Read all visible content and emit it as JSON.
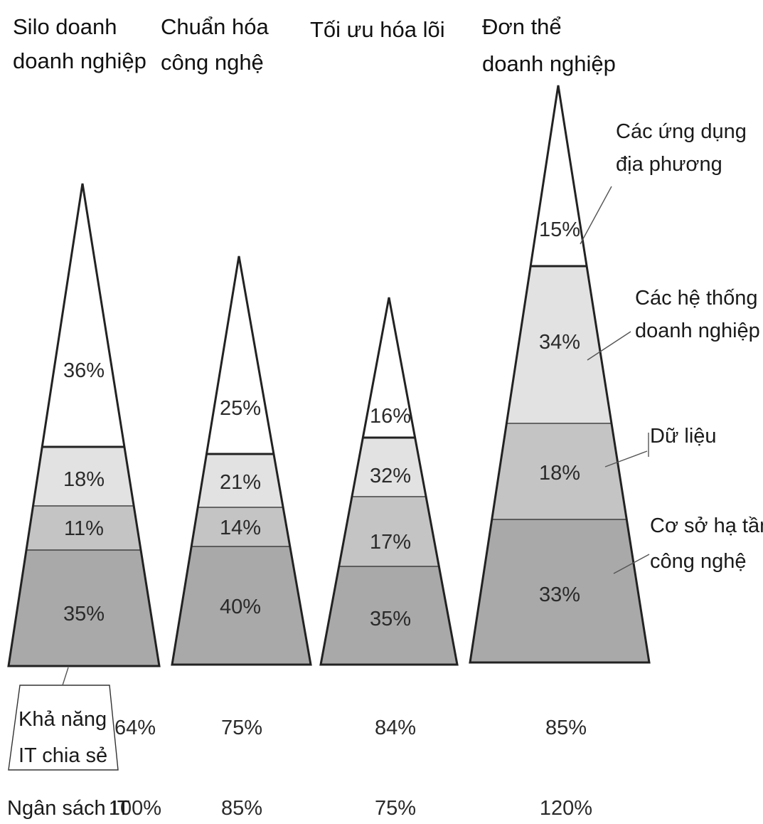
{
  "colors": {
    "local_applications": "#ffffff",
    "enterprise_systems": "#e2e2e2",
    "data": "#c4c4c4",
    "technology_infrastructure": "#a9a9a9",
    "outline": "#222222"
  },
  "stages": [
    {
      "title_lines": [
        "Silo doanh",
        "doanh nghiệp"
      ],
      "segments": [
        {
          "layer": "local_applications",
          "label": "36%",
          "value": 36
        },
        {
          "layer": "enterprise_systems",
          "label": "18%",
          "value": 18
        },
        {
          "layer": "data",
          "label": "11%",
          "value": 11
        },
        {
          "layer": "technology_infrastructure",
          "label": "35%",
          "value": 35
        }
      ],
      "shared_it": "64%",
      "it_budget": "100%"
    },
    {
      "title_lines": [
        "Chuẩn hóa",
        "công nghệ"
      ],
      "segments": [
        {
          "layer": "local_applications",
          "label": "25%",
          "value": 25
        },
        {
          "layer": "enterprise_systems",
          "label": "21%",
          "value": 21
        },
        {
          "layer": "data",
          "label": "14%",
          "value": 14
        },
        {
          "layer": "technology_infrastructure",
          "label": "40%",
          "value": 40
        }
      ],
      "shared_it": "75%",
      "it_budget": "85%"
    },
    {
      "title_lines": [
        "Tối ưu hóa lõi"
      ],
      "segments": [
        {
          "layer": "local_applications",
          "label": "16%",
          "value": 16
        },
        {
          "layer": "enterprise_systems",
          "label": "32%",
          "value": 32
        },
        {
          "layer": "data",
          "label": "17%",
          "value": 17
        },
        {
          "layer": "technology_infrastructure",
          "label": "35%",
          "value": 35
        }
      ],
      "shared_it": "84%",
      "it_budget": "75%"
    },
    {
      "title_lines": [
        "Đơn thể",
        "doanh nghiệp"
      ],
      "segments": [
        {
          "layer": "local_applications",
          "label": "15%",
          "value": 15
        },
        {
          "layer": "enterprise_systems",
          "label": "34%",
          "value": 34
        },
        {
          "layer": "data",
          "label": "18%",
          "value": 18
        },
        {
          "layer": "technology_infrastructure",
          "label": "33%",
          "value": 33
        }
      ],
      "shared_it": "85%",
      "it_budget": "120%"
    }
  ],
  "layer_labels": [
    {
      "layer": "local_applications",
      "lines": [
        "Các ứng dụng",
        "địa phương"
      ]
    },
    {
      "layer": "enterprise_systems",
      "lines": [
        "Các hệ thống",
        "doanh nghiệp"
      ]
    },
    {
      "layer": "data",
      "lines": [
        "Dữ liệu"
      ]
    },
    {
      "layer": "technology_infrastructure",
      "lines": [
        "Cơ sở hạ tầng",
        "công nghệ"
      ]
    }
  ],
  "row_labels": {
    "shared_it_lines": [
      "Khả năng",
      "IT chia sẻ"
    ],
    "it_budget": "Ngân sách IT"
  }
}
